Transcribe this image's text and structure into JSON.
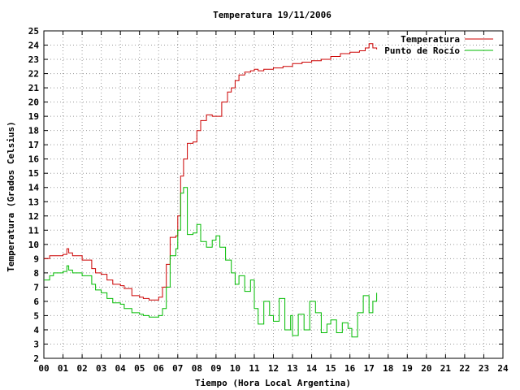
{
  "chart_data": {
    "type": "line",
    "title": "Temperatura 19/11/2006",
    "xlabel": "Tiempo (Hora Local Argentina)",
    "ylabel": "Temperatura (Grados Celsius)",
    "xlim": [
      0,
      24
    ],
    "ylim": [
      2,
      25
    ],
    "x_tick_labels": [
      "00",
      "01",
      "02",
      "03",
      "04",
      "05",
      "06",
      "07",
      "08",
      "09",
      "10",
      "11",
      "12",
      "13",
      "14",
      "15",
      "16",
      "17",
      "18",
      "19",
      "20",
      "21",
      "22",
      "23",
      "24"
    ],
    "y_tick_labels": [
      "2",
      "3",
      "4",
      "5",
      "6",
      "7",
      "8",
      "9",
      "10",
      "11",
      "12",
      "13",
      "14",
      "15",
      "16",
      "17",
      "18",
      "19",
      "20",
      "21",
      "22",
      "23",
      "24",
      "25"
    ],
    "grid": true,
    "legend_position": "top-right",
    "series": [
      {
        "name": "Temperatura",
        "color": "#cc0000",
        "x": [
          0,
          0.3,
          0.5,
          1.0,
          1.2,
          1.3,
          1.5,
          2.0,
          2.5,
          2.7,
          3.0,
          3.3,
          3.6,
          4.0,
          4.2,
          4.6,
          5.0,
          5.2,
          5.5,
          5.8,
          6.0,
          6.2,
          6.4,
          6.6,
          6.9,
          7.0,
          7.15,
          7.3,
          7.5,
          7.8,
          8.0,
          8.2,
          8.5,
          8.8,
          9.0,
          9.3,
          9.6,
          9.8,
          10.0,
          10.2,
          10.5,
          10.8,
          11.0,
          11.2,
          11.5,
          12.0,
          12.5,
          13.0,
          13.5,
          14.0,
          14.5,
          15.0,
          15.5,
          16.0,
          16.5,
          16.8,
          17.0,
          17.2,
          17.4
        ],
        "y": [
          9.0,
          9.2,
          9.2,
          9.3,
          9.7,
          9.4,
          9.2,
          8.9,
          8.3,
          8.0,
          7.9,
          7.5,
          7.2,
          7.1,
          6.9,
          6.4,
          6.3,
          6.2,
          6.1,
          6.1,
          6.3,
          7.0,
          8.6,
          10.5,
          10.6,
          12.0,
          14.8,
          16.0,
          17.1,
          17.2,
          18.0,
          18.7,
          19.1,
          19.0,
          19.0,
          20.0,
          20.7,
          21.0,
          21.5,
          21.9,
          22.1,
          22.2,
          22.3,
          22.2,
          22.3,
          22.4,
          22.5,
          22.7,
          22.8,
          22.9,
          23.0,
          23.2,
          23.4,
          23.5,
          23.6,
          23.8,
          24.1,
          23.8,
          23.7
        ]
      },
      {
        "name": "Punto de Rocío",
        "color": "#00bb00",
        "x": [
          0,
          0.3,
          0.5,
          1.0,
          1.2,
          1.3,
          1.5,
          2.0,
          2.5,
          2.7,
          3.0,
          3.3,
          3.6,
          4.0,
          4.2,
          4.6,
          5.0,
          5.2,
          5.5,
          5.8,
          6.0,
          6.2,
          6.4,
          6.6,
          6.9,
          7.0,
          7.15,
          7.3,
          7.5,
          7.8,
          8.0,
          8.2,
          8.5,
          8.8,
          9.0,
          9.2,
          9.5,
          9.8,
          10.0,
          10.2,
          10.5,
          10.8,
          11.0,
          11.2,
          11.5,
          11.8,
          12.0,
          12.3,
          12.6,
          12.9,
          13.0,
          13.3,
          13.6,
          13.9,
          14.2,
          14.5,
          14.8,
          15.0,
          15.3,
          15.6,
          15.9,
          16.1,
          16.4,
          16.7,
          17.0,
          17.2,
          17.4
        ],
        "y": [
          7.5,
          7.8,
          8.0,
          8.1,
          8.5,
          8.2,
          8.0,
          7.8,
          7.2,
          6.8,
          6.6,
          6.2,
          5.9,
          5.8,
          5.5,
          5.2,
          5.1,
          5.0,
          4.9,
          4.9,
          5.0,
          5.5,
          7.0,
          9.2,
          9.7,
          11.0,
          13.6,
          14.0,
          10.7,
          10.8,
          11.4,
          10.2,
          9.8,
          10.3,
          10.6,
          9.8,
          8.9,
          8.0,
          7.2,
          7.8,
          6.7,
          7.5,
          5.5,
          4.4,
          6.0,
          5.0,
          4.6,
          6.2,
          4.0,
          5.0,
          3.6,
          5.1,
          4.0,
          6.0,
          5.2,
          3.8,
          4.4,
          4.7,
          3.8,
          4.5,
          4.1,
          3.5,
          5.2,
          6.4,
          5.2,
          6.0,
          6.6
        ]
      }
    ]
  }
}
